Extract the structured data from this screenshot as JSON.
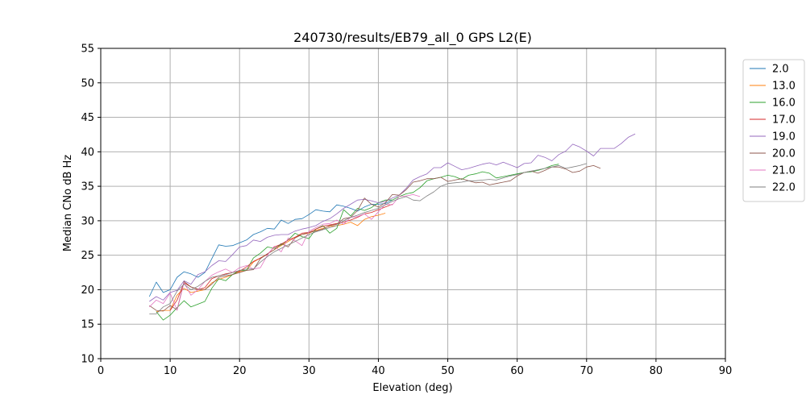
{
  "chart_data": {
    "type": "line",
    "title": "240730/results/EB79_all_0 GPS L2(E)",
    "xlabel": "Elevation (deg)",
    "ylabel": "Median CNo dB Hz",
    "xlim": [
      0,
      90
    ],
    "ylim": [
      10,
      55
    ],
    "xticks": [
      0,
      10,
      20,
      30,
      40,
      50,
      60,
      70,
      80,
      90
    ],
    "yticks": [
      10,
      15,
      20,
      25,
      30,
      35,
      40,
      45,
      50,
      55
    ],
    "grid": true,
    "legend_position": "outside-right",
    "series": [
      {
        "name": "2.0",
        "color": "#1f77b4",
        "x": [
          7,
          8,
          9,
          10,
          11,
          12,
          13,
          14,
          15,
          16,
          17,
          18,
          19,
          20,
          21,
          22,
          23,
          24,
          25,
          26,
          27,
          28,
          29,
          30,
          31,
          32,
          33,
          34,
          35,
          36,
          37,
          38,
          39,
          40,
          41,
          42
        ],
        "y": [
          19.0,
          21.1,
          19.6,
          20.0,
          21.8,
          22.6,
          22.3,
          21.8,
          22.5,
          24.5,
          26.5,
          26.3,
          26.4,
          26.8,
          27.2,
          28.0,
          28.4,
          28.9,
          28.8,
          30.1,
          29.6,
          30.2,
          30.3,
          30.9,
          31.6,
          31.4,
          31.3,
          32.3,
          32.1,
          31.8,
          31.4,
          32.0,
          32.4,
          32.4,
          32.5,
          33.0
        ]
      },
      {
        "name": "13.0",
        "color": "#ff7f0e",
        "x": [
          8,
          9,
          10,
          11,
          12,
          13,
          14,
          15,
          16,
          17,
          18,
          19,
          20,
          21,
          22,
          23,
          24,
          25,
          26,
          27,
          28,
          29,
          30,
          31,
          32,
          33,
          34,
          35,
          36,
          37,
          38,
          39,
          40,
          41
        ],
        "y": [
          16.8,
          17.0,
          17.0,
          19.2,
          20.2,
          19.6,
          19.8,
          20.0,
          21.0,
          21.5,
          21.8,
          22.2,
          22.6,
          22.8,
          24.0,
          24.6,
          25.2,
          25.8,
          26.4,
          27.0,
          27.6,
          28.0,
          28.2,
          28.6,
          28.9,
          29.2,
          29.3,
          29.5,
          29.8,
          29.3,
          30.2,
          30.6,
          30.8,
          31.1
        ]
      },
      {
        "name": "16.0",
        "color": "#2ca02c",
        "x": [
          8,
          9,
          10,
          11,
          12,
          13,
          14,
          15,
          16,
          17,
          18,
          19,
          20,
          21,
          22,
          23,
          24,
          25,
          26,
          27,
          28,
          29,
          30,
          31,
          32,
          33,
          34,
          35,
          36,
          37,
          38,
          39,
          40,
          41,
          42,
          43,
          44,
          45,
          46,
          47,
          48,
          49,
          50,
          51,
          52,
          53,
          54,
          55,
          56,
          57,
          58,
          59,
          60,
          61,
          62,
          63,
          64,
          65,
          66
        ],
        "y": [
          16.8,
          15.6,
          16.3,
          17.4,
          18.4,
          17.5,
          17.9,
          18.3,
          20.2,
          21.6,
          21.3,
          22.2,
          22.8,
          22.8,
          24.6,
          25.3,
          26.2,
          26.0,
          26.5,
          27.2,
          28.2,
          27.7,
          27.4,
          28.8,
          29.3,
          28.2,
          28.9,
          31.6,
          30.7,
          31.8,
          31.5,
          31.9,
          32.6,
          33.0,
          33.0,
          33.5,
          33.9,
          34.1,
          34.8,
          35.8,
          36.1,
          36.3,
          36.6,
          36.4,
          36.0,
          36.6,
          36.8,
          37.1,
          36.9,
          36.2,
          36.4,
          36.6,
          36.8,
          37.0,
          37.1,
          37.3,
          37.6,
          38.0,
          38.2
        ]
      },
      {
        "name": "17.0",
        "color": "#d62728",
        "x": [
          10,
          11,
          12,
          13,
          14,
          15,
          16,
          17,
          18,
          19,
          20,
          21,
          22,
          23,
          24,
          25,
          26,
          27,
          28,
          29,
          30,
          31,
          32,
          33,
          34,
          35,
          36,
          37,
          38,
          39,
          40,
          41,
          42
        ],
        "y": [
          17.0,
          18.5,
          21.0,
          20.4,
          20.0,
          20.3,
          21.6,
          22.0,
          22.3,
          22.5,
          22.7,
          23.3,
          24.1,
          24.6,
          25.1,
          26.2,
          26.6,
          27.2,
          27.6,
          28.2,
          28.3,
          28.8,
          29.2,
          29.4,
          29.6,
          29.8,
          30.1,
          30.5,
          31.0,
          31.2,
          31.6,
          32.0,
          32.4
        ]
      },
      {
        "name": "19.0",
        "color": "#9467bd",
        "x": [
          7,
          8,
          9,
          10,
          11,
          12,
          13,
          14,
          15,
          16,
          17,
          18,
          19,
          20,
          21,
          22,
          23,
          24,
          25,
          26,
          27,
          28,
          29,
          30,
          31,
          32,
          33,
          34,
          35,
          36,
          37,
          38,
          39,
          40,
          41,
          42,
          43,
          44,
          45,
          46,
          47,
          48,
          49,
          50,
          51,
          52,
          53,
          54,
          55,
          56,
          57,
          58,
          59,
          60,
          61,
          62,
          63,
          64,
          65,
          66,
          67,
          68,
          69,
          70,
          71,
          72,
          73,
          74,
          75,
          76,
          77
        ],
        "y": [
          18.3,
          19.0,
          18.5,
          19.6,
          19.9,
          21.3,
          20.8,
          22.2,
          22.6,
          23.5,
          24.2,
          24.1,
          25.1,
          26.2,
          26.4,
          27.2,
          27.0,
          27.6,
          27.9,
          28.0,
          28.0,
          28.5,
          28.8,
          29.0,
          29.3,
          29.9,
          30.3,
          31.0,
          31.8,
          32.4,
          33.0,
          33.1,
          32.9,
          32.6,
          32.8,
          33.3,
          33.7,
          34.7,
          35.9,
          36.4,
          36.8,
          37.7,
          37.7,
          38.4,
          37.9,
          37.4,
          37.6,
          37.9,
          38.2,
          38.4,
          38.1,
          38.5,
          38.1,
          37.7,
          38.3,
          38.4,
          39.5,
          39.2,
          38.7,
          39.6,
          40.1,
          41.1,
          40.7,
          40.1,
          39.4,
          40.5,
          40.5,
          40.5,
          41.2,
          42.1,
          42.6
        ]
      },
      {
        "name": "20.0",
        "color": "#8c564b",
        "x": [
          7,
          8,
          9,
          10,
          11,
          12,
          13,
          14,
          15,
          16,
          17,
          18,
          19,
          20,
          21,
          22,
          23,
          24,
          25,
          26,
          27,
          28,
          29,
          30,
          31,
          32,
          33,
          34,
          35,
          36,
          37,
          38,
          39,
          40,
          41,
          42,
          43,
          44,
          45,
          46,
          47,
          48,
          49,
          50,
          51,
          52,
          53,
          54,
          55,
          56,
          57,
          58,
          59,
          60,
          61,
          62,
          63,
          64,
          65,
          66,
          67,
          68,
          69,
          70,
          71,
          72
        ],
        "y": [
          17.7,
          17.0,
          16.9,
          17.7,
          17.1,
          21.2,
          20.4,
          20.1,
          20.0,
          20.8,
          21.8,
          22.0,
          22.2,
          22.5,
          22.8,
          22.9,
          24.5,
          25.2,
          25.8,
          26.7,
          26.2,
          27.5,
          28.0,
          28.3,
          28.5,
          28.8,
          29.3,
          29.5,
          30.3,
          30.5,
          31.5,
          33.3,
          32.4,
          32.0,
          32.6,
          33.8,
          33.7,
          34.5,
          35.6,
          35.8,
          36.1,
          36.1,
          36.3,
          35.7,
          35.9,
          36.1,
          35.8,
          35.5,
          35.6,
          35.2,
          35.4,
          35.6,
          35.8,
          36.5,
          37.0,
          37.2,
          36.9,
          37.3,
          37.8,
          37.8,
          37.5,
          37.0,
          37.2,
          37.8,
          38.0,
          37.6
        ]
      },
      {
        "name": "21.0",
        "color": "#e377c2",
        "x": [
          7,
          8,
          9,
          10,
          11,
          12,
          13,
          14,
          15,
          16,
          17,
          18,
          19,
          20,
          21,
          22,
          23,
          24,
          25,
          26,
          27,
          28,
          29,
          30,
          31,
          32,
          33,
          34,
          35,
          36,
          37,
          38,
          39,
          40,
          41,
          42,
          43,
          44,
          45,
          46
        ],
        "y": [
          17.5,
          18.5,
          18.0,
          19.5,
          17.0,
          21.0,
          19.2,
          20.0,
          21.2,
          22.1,
          22.6,
          23.0,
          22.5,
          23.2,
          23.5,
          23.0,
          23.2,
          25.0,
          26.3,
          25.5,
          27.5,
          27.1,
          26.4,
          28.5,
          29.0,
          29.5,
          29.6,
          30.1,
          29.5,
          30.5,
          30.6,
          31.0,
          30.2,
          31.3,
          32.4,
          32.3,
          33.5,
          33.6,
          33.8,
          33.5
        ]
      },
      {
        "name": "22.0",
        "color": "#7f7f7f",
        "x": [
          7,
          8,
          9,
          10,
          11,
          12,
          13,
          14,
          15,
          16,
          17,
          18,
          19,
          20,
          21,
          22,
          23,
          24,
          25,
          26,
          27,
          28,
          29,
          30,
          31,
          32,
          33,
          34,
          35,
          36,
          37,
          38,
          39,
          40,
          41,
          42,
          43,
          44,
          45,
          46,
          47,
          48,
          49,
          50,
          51,
          52,
          53,
          54,
          55,
          56,
          57,
          58,
          59,
          60,
          61,
          62,
          63,
          64,
          65,
          66,
          67,
          68,
          69,
          70
        ],
        "y": [
          16.5,
          16.5,
          17.5,
          18.0,
          19.8,
          20.8,
          20.0,
          20.5,
          21.2,
          21.8,
          22.0,
          22.2,
          22.5,
          22.8,
          23.0,
          23.0,
          24.0,
          24.8,
          25.5,
          26.0,
          26.5,
          27.0,
          27.5,
          28.0,
          28.4,
          28.7,
          29.0,
          29.3,
          30.0,
          30.5,
          30.8,
          31.2,
          31.5,
          31.8,
          32.3,
          32.8,
          33.2,
          33.5,
          33.0,
          32.9,
          33.6,
          34.2,
          35.0,
          35.4,
          35.5,
          35.6,
          35.8,
          35.8,
          35.9,
          36.0,
          35.9,
          36.2,
          36.5,
          36.7,
          37.0,
          37.2,
          37.4,
          37.6,
          37.8,
          38.0,
          37.6,
          37.8,
          38.0,
          38.3
        ]
      }
    ]
  }
}
